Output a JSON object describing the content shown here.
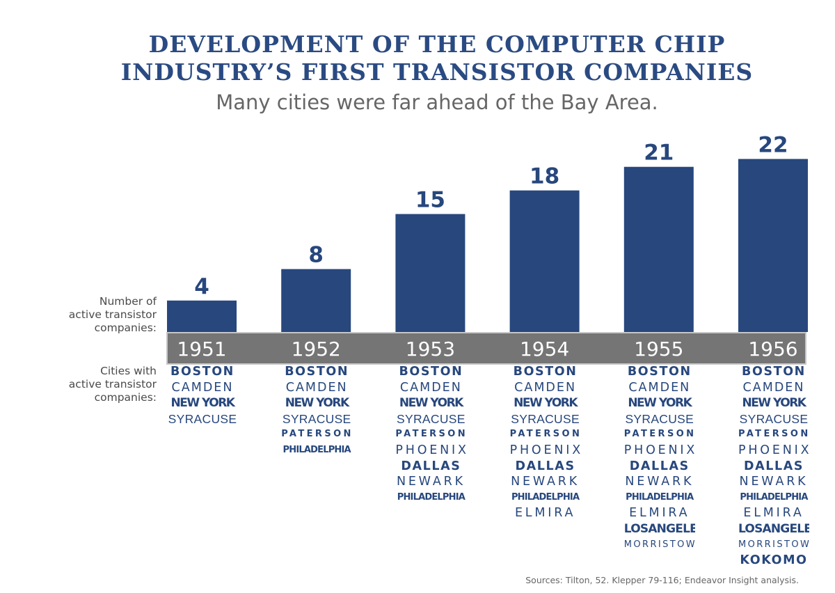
{
  "title_line1": "DEVELOPMENT OF THE COMPUTER CHIP",
  "title_line2": "INDUSTRY’S FIRST TRANSISTOR COMPANIES",
  "subtitle": "Many cities were far ahead of the Bay Area.",
  "labels": {
    "count_line1": "Number of",
    "count_line2": "active transistor",
    "count_line3": "companies:",
    "cities_line1": "Cities with",
    "cities_line2": "active transistor",
    "cities_line3": "companies:"
  },
  "source": "Sources: Tilton, 52. Klepper 79-116; Endeavor Insight analysis.",
  "colors": {
    "bar": "#27477d",
    "year_band": "#757575",
    "text_gray": "#666666"
  },
  "chart_data": {
    "type": "bar",
    "title": "DEVELOPMENT OF THE COMPUTER CHIP INDUSTRY’S FIRST TRANSISTOR COMPANIES",
    "subtitle": "Many cities were far ahead of the Bay Area.",
    "categories": [
      "1951",
      "1952",
      "1953",
      "1954",
      "1955",
      "1956"
    ],
    "values": [
      4,
      8,
      15,
      18,
      21,
      22
    ],
    "ylabel": "Number of active transistor companies:",
    "xlabel": "",
    "ylim": [
      0,
      22
    ],
    "grid": false,
    "cities": [
      [
        "BOSTON",
        "CAMDEN",
        "NEW YORK",
        "SYRACUSE"
      ],
      [
        "BOSTON",
        "CAMDEN",
        "NEW YORK",
        "SYRACUSE",
        "PATERSON",
        "PHILADELPHIA"
      ],
      [
        "BOSTON",
        "CAMDEN",
        "NEW YORK",
        "SYRACUSE",
        "PATERSON",
        "PHOENIX",
        "DALLAS",
        "NEWARK",
        "PHILADELPHIA"
      ],
      [
        "BOSTON",
        "CAMDEN",
        "NEW YORK",
        "SYRACUSE",
        "PATERSON",
        "PHOENIX",
        "DALLAS",
        "NEWARK",
        "PHILADELPHIA",
        "ELMIRA"
      ],
      [
        "BOSTON",
        "CAMDEN",
        "NEW YORK",
        "SYRACUSE",
        "PATERSON",
        "PHOENIX",
        "DALLAS",
        "NEWARK",
        "PHILADELPHIA",
        "ELMIRA",
        "LOSANGELES",
        "MORRISTOWN"
      ],
      [
        "BOSTON",
        "CAMDEN",
        "NEW YORK",
        "SYRACUSE",
        "PATERSON",
        "PHOENIX",
        "DALLAS",
        "NEWARK",
        "PHILADELPHIA",
        "ELMIRA",
        "LOSANGELES",
        "MORRISTOWN",
        "KOKOMO"
      ]
    ]
  }
}
